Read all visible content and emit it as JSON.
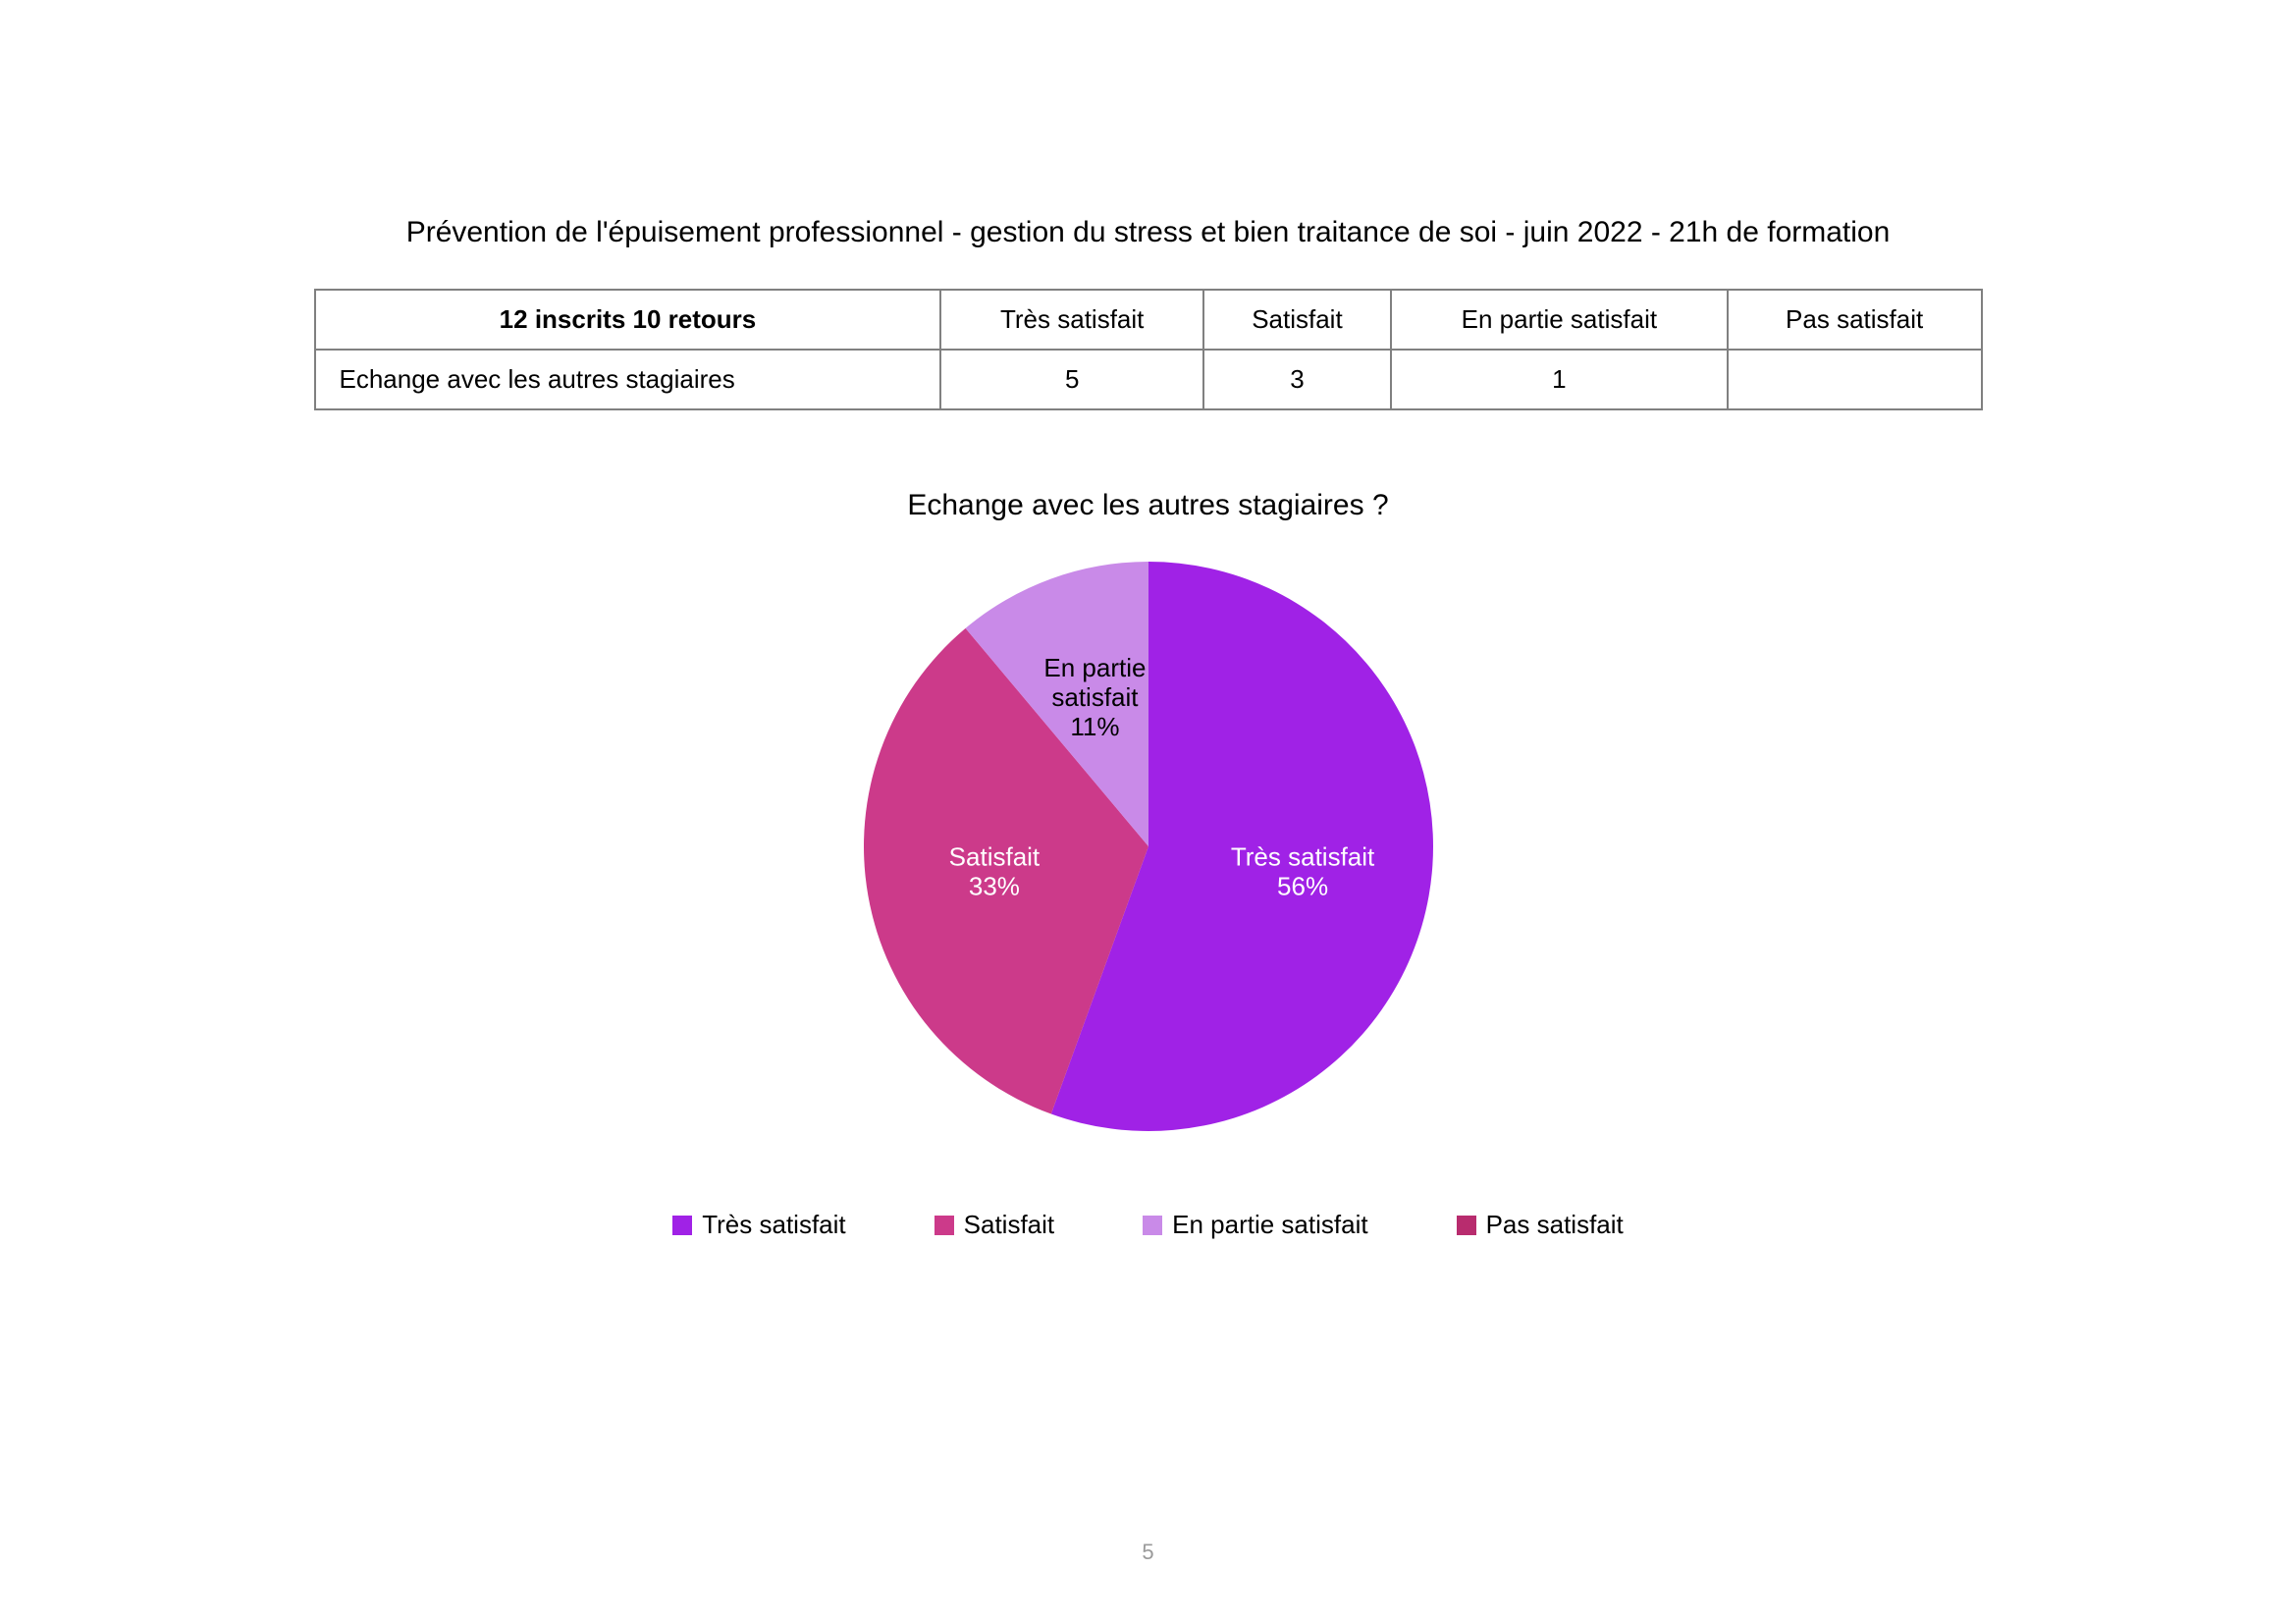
{
  "title": "Prévention de l'épuisement professionnel - gestion du stress et bien traitance de soi - juin 2022 - 21h de formation",
  "table": {
    "header_rowlabel": "12 inscrits 10 retours",
    "columns": [
      "Très satisfait",
      "Satisfait",
      "En partie satisfait",
      "Pas satisfait"
    ],
    "row_label": "Echange avec les autres stagiaires",
    "row_values": [
      "5",
      "3",
      "1",
      ""
    ]
  },
  "chart": {
    "type": "pie",
    "title": "Echange avec les autres stagiaires ?",
    "radius": 290,
    "start_angle_deg": -90,
    "background_color": "#ffffff",
    "slices": [
      {
        "name": "Très satisfait",
        "value": 5,
        "percent_label": "56%",
        "label_line1": "Très satisfait",
        "label_line2": "56%",
        "color": "#a022e6",
        "label_color": "#ffffff"
      },
      {
        "name": "Satisfait",
        "value": 3,
        "percent_label": "33%",
        "label_line1": "Satisfait",
        "label_line2": "33%",
        "color": "#cc3a8a",
        "label_color": "#ffffff"
      },
      {
        "name": "En partie satisfait",
        "value": 1,
        "percent_label": "11%",
        "label_line1": "En partie",
        "label_line2": "satisfait",
        "label_line3": "11%",
        "color": "#c98ae8",
        "label_color": "#000000"
      },
      {
        "name": "Pas satisfait",
        "value": 0,
        "percent_label": "0%",
        "color": "#b82c6e",
        "label_color": "#ffffff"
      }
    ],
    "legend_items": [
      {
        "label": "Très satisfait",
        "color": "#a022e6"
      },
      {
        "label": "Satisfait",
        "color": "#cc3a8a"
      },
      {
        "label": "En partie satisfait",
        "color": "#c98ae8"
      },
      {
        "label": "Pas satisfait",
        "color": "#b82c6e"
      }
    ]
  },
  "page_number": "5"
}
